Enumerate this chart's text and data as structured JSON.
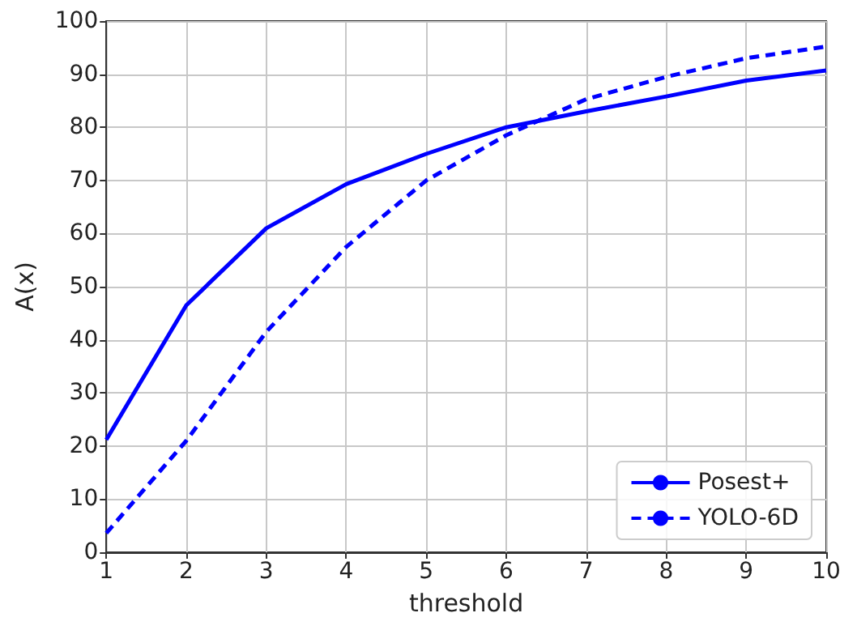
{
  "chart_data": {
    "type": "line",
    "xlabel": "threshold",
    "ylabel": "A(x)",
    "x": [
      1,
      2,
      3,
      4,
      5,
      6,
      7,
      8,
      9,
      10
    ],
    "series": [
      {
        "name": "Posest+",
        "color": "#0000ff",
        "line_style": "solid",
        "values": [
          21.2,
          46.5,
          61,
          69.3,
          75,
          80,
          83,
          85.8,
          88.8,
          90.7
        ]
      },
      {
        "name": "YOLO-6D",
        "color": "#0000ff",
        "line_style": "dashed",
        "values": [
          3.6,
          21,
          41.5,
          57.5,
          70,
          78.5,
          85.3,
          89.5,
          93,
          95.2
        ]
      }
    ],
    "xlim": [
      1,
      10
    ],
    "xticks": [
      1,
      2,
      3,
      4,
      5,
      6,
      7,
      8,
      9,
      10
    ],
    "ylim": [
      0,
      100
    ],
    "yticks": [
      0,
      10,
      20,
      30,
      40,
      50,
      60,
      70,
      80,
      90,
      100
    ],
    "grid": true,
    "legend": "bottom right",
    "marker": "none"
  }
}
